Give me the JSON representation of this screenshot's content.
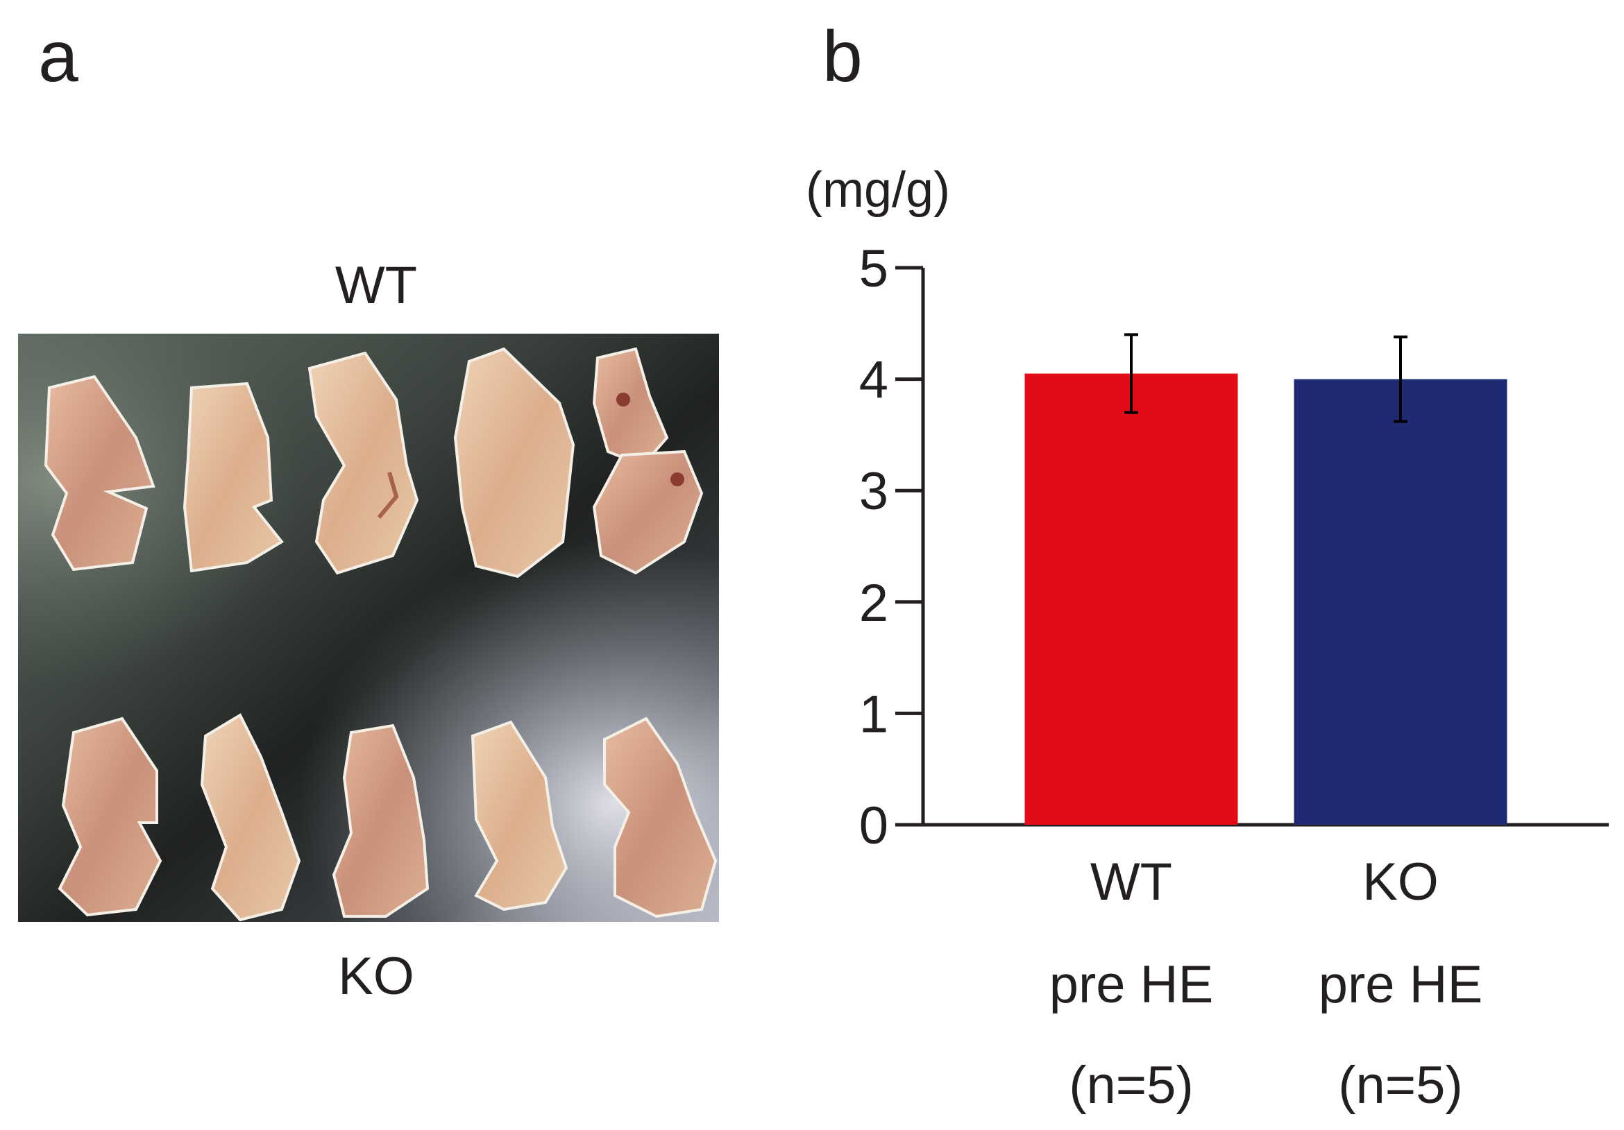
{
  "panels": {
    "a": {
      "letter": "a",
      "photo_top_label": "WT",
      "photo_bottom_label": "KO"
    },
    "b": {
      "letter": "b"
    }
  },
  "colors": {
    "wt_bar": "#e30b17",
    "ko_bar": "#1f2a72",
    "axis": "#231f20"
  },
  "chart_data": {
    "type": "bar",
    "title": "",
    "ylabel": "(mg/g)",
    "xlabel": "",
    "ylim": [
      0,
      5
    ],
    "yticks": [
      0,
      1,
      2,
      3,
      4,
      5
    ],
    "categories": [
      {
        "name": "WT",
        "line2": "pre HE",
        "line3": "(n=5)"
      },
      {
        "name": "KO",
        "line2": "pre HE",
        "line3": "(n=5)"
      }
    ],
    "values": [
      4.05,
      4.0
    ],
    "errors": [
      0.35,
      0.38
    ],
    "bar_colors": [
      "#e30b17",
      "#1f2a72"
    ]
  }
}
